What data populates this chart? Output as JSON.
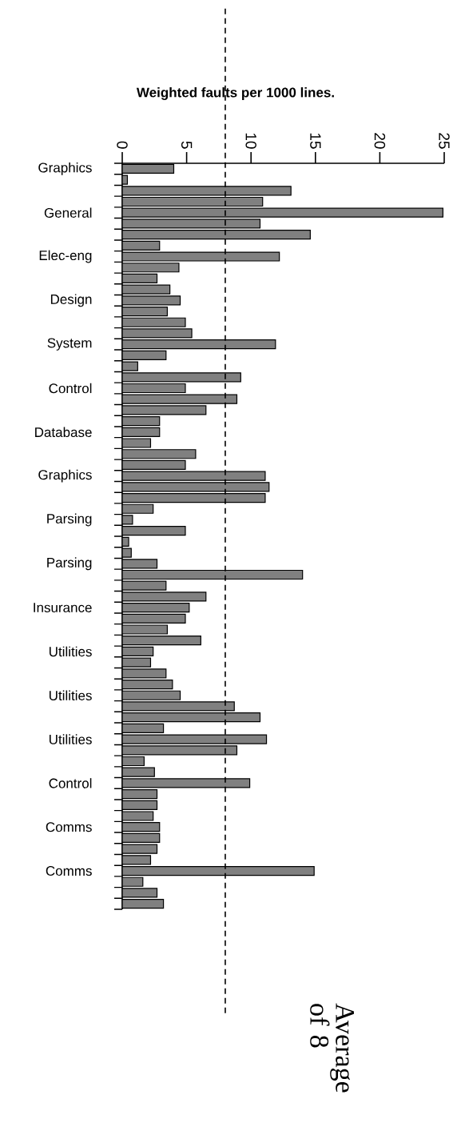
{
  "chart_data": {
    "type": "bar",
    "orientation": "horizontal",
    "title": "Weighted faults per 1000 lines.",
    "categories": [
      "Graphics",
      null,
      null,
      null,
      "General",
      null,
      null,
      null,
      "Elec-eng",
      null,
      null,
      null,
      "Design",
      null,
      null,
      null,
      "System",
      null,
      null,
      null,
      "Control",
      null,
      null,
      null,
      "Database",
      null,
      null,
      null,
      "Graphics",
      null,
      null,
      null,
      "Parsing",
      null,
      null,
      null,
      "Parsing",
      null,
      null,
      null,
      "Insurance",
      null,
      null,
      null,
      "Utilities",
      null,
      null,
      null,
      "Utilities",
      null,
      null,
      null,
      "Utilities",
      null,
      null,
      null,
      "Control",
      null,
      null,
      null,
      "Comms",
      null,
      null,
      null,
      "Comms",
      null,
      null,
      null
    ],
    "values": [
      4.0,
      0.4,
      13.1,
      10.9,
      24.9,
      10.7,
      14.6,
      2.9,
      12.2,
      4.4,
      2.7,
      3.7,
      4.5,
      3.5,
      4.9,
      5.4,
      11.9,
      3.4,
      1.2,
      9.2,
      4.9,
      8.9,
      6.5,
      2.9,
      2.9,
      2.2,
      5.7,
      4.9,
      11.1,
      11.4,
      11.1,
      2.4,
      0.8,
      4.9,
      0.5,
      0.7,
      2.7,
      14.0,
      3.4,
      6.5,
      5.2,
      4.9,
      3.5,
      6.1,
      2.4,
      2.2,
      3.4,
      3.9,
      4.5,
      8.7,
      10.7,
      3.2,
      11.2,
      8.9,
      1.7,
      2.5,
      9.9,
      2.7,
      2.7,
      2.4,
      2.9,
      2.9,
      2.7,
      2.2,
      14.9,
      1.6,
      2.7,
      3.2
    ],
    "color": "#808080",
    "xlim": [
      0,
      25
    ],
    "xticks": [
      0,
      5,
      10,
      15,
      20,
      25
    ],
    "ref_lines": [
      {
        "axis": "x",
        "value": 8,
        "label": "Average of 8",
        "line_style": "dashed",
        "color": "#000000"
      }
    ]
  }
}
